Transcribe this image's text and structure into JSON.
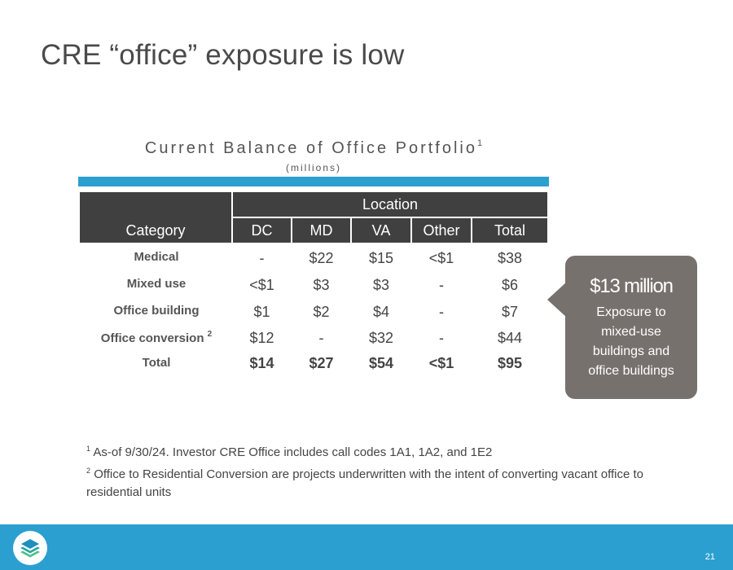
{
  "slide": {
    "title": "CRE “office” exposure is low",
    "page_number": "21"
  },
  "table": {
    "heading": "Current Balance of Office Portfolio",
    "heading_footnote": "1",
    "subheading": "(millions)",
    "header_category": "Category",
    "header_location": "Location",
    "columns": [
      "DC",
      "MD",
      "VA",
      "Other",
      "Total"
    ],
    "rows": [
      {
        "category": "Medical",
        "footnote": "",
        "values": [
          "-",
          "$22",
          "$15",
          "<$1",
          "$38"
        ]
      },
      {
        "category": "Mixed use",
        "footnote": "",
        "values": [
          "<$1",
          "$3",
          "$3",
          "-",
          "$6"
        ]
      },
      {
        "category": "Office building",
        "footnote": "",
        "values": [
          "$1",
          "$2",
          "$4",
          "-",
          "$7"
        ]
      },
      {
        "category": "Office conversion",
        "footnote": "2",
        "values": [
          "$12",
          "-",
          "$32",
          "-",
          "$44"
        ]
      },
      {
        "category": "Total",
        "footnote": "",
        "values": [
          "$14",
          "$27",
          "$54",
          "<$1",
          "$95"
        ]
      }
    ]
  },
  "callout": {
    "value": "$13 million",
    "line1": "Exposure to",
    "line2": "mixed-use",
    "line3": "buildings and",
    "line4": "office buildings"
  },
  "footnotes": [
    {
      "marker": "1",
      "text": "As-of 9/30/24. Investor CRE Office includes call codes 1A1, 1A2, and 1E2"
    },
    {
      "marker": "2",
      "text": "Office to Residential Conversion are projects underwritten with the intent of converting vacant office to residential  units"
    }
  ],
  "colors": {
    "accent_blue": "#2b9fd0",
    "header_dark": "#404040",
    "callout_gray": "#77716d"
  }
}
